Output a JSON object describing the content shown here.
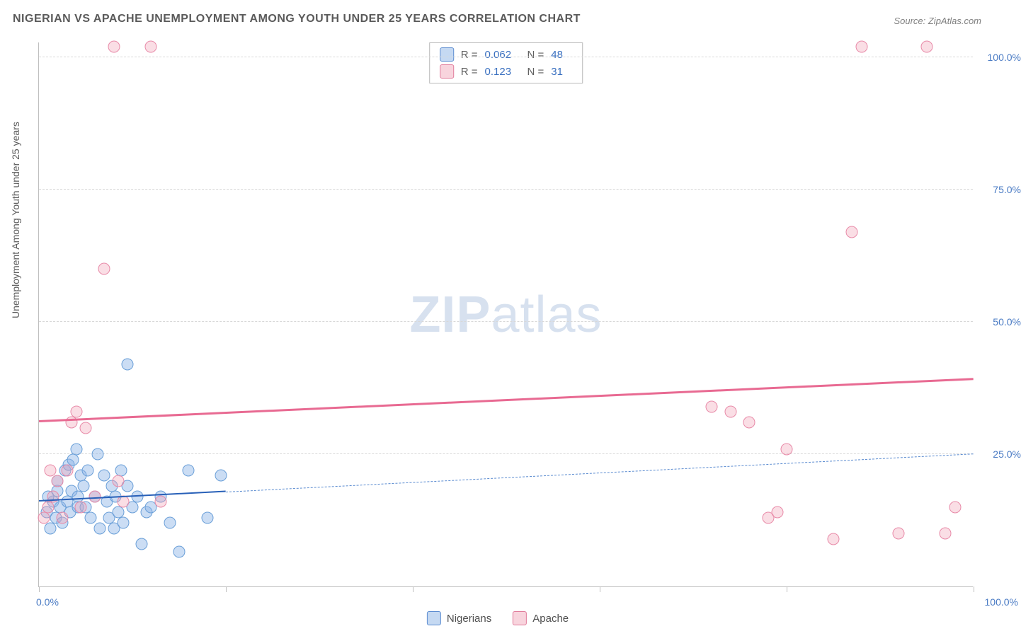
{
  "title": "NIGERIAN VS APACHE UNEMPLOYMENT AMONG YOUTH UNDER 25 YEARS CORRELATION CHART",
  "source": "Source: ZipAtlas.com",
  "ylabel": "Unemployment Among Youth under 25 years",
  "watermark_bold": "ZIP",
  "watermark_light": "atlas",
  "chart": {
    "type": "scatter",
    "xlim": [
      0,
      100
    ],
    "ylim": [
      0,
      103
    ],
    "y_grid": [
      25,
      50,
      75,
      100
    ],
    "y_tick_labels": [
      "25.0%",
      "50.0%",
      "75.0%",
      "100.0%"
    ],
    "x_ticks": [
      0,
      20,
      40,
      60,
      80,
      100
    ],
    "x_tick_labels": {
      "left": "0.0%",
      "right": "100.0%"
    },
    "background": "#ffffff",
    "grid_color": "#d8d8d8",
    "axis_color": "#bfbfbf",
    "ytick_color": "#4a7bc4",
    "series": [
      {
        "name": "Nigerians",
        "color_fill": "rgba(140,180,230,0.45)",
        "color_stroke": "#6a9fd8",
        "r_value": "0.062",
        "n_value": "48",
        "trend": {
          "x1": 0,
          "y1": 16,
          "x2_solid": 20,
          "x2": 100,
          "y2": 25,
          "solid_color": "#2860b8",
          "dash_color": "#5a8bd0"
        },
        "points": [
          [
            0.8,
            14
          ],
          [
            1.2,
            11
          ],
          [
            1.5,
            16
          ],
          [
            1.0,
            17
          ],
          [
            1.8,
            13
          ],
          [
            2.0,
            18
          ],
          [
            2.3,
            15
          ],
          [
            2.5,
            12
          ],
          [
            2.0,
            20
          ],
          [
            2.8,
            22
          ],
          [
            3.0,
            16
          ],
          [
            3.3,
            14
          ],
          [
            3.5,
            18
          ],
          [
            3.2,
            23
          ],
          [
            3.6,
            24
          ],
          [
            4.0,
            26
          ],
          [
            4.2,
            17
          ],
          [
            4.5,
            21
          ],
          [
            4.2,
            15
          ],
          [
            4.8,
            19
          ],
          [
            5.0,
            15
          ],
          [
            5.2,
            22
          ],
          [
            5.5,
            13
          ],
          [
            6.0,
            17
          ],
          [
            6.3,
            25
          ],
          [
            6.5,
            11
          ],
          [
            7.0,
            21
          ],
          [
            7.3,
            16
          ],
          [
            7.5,
            13
          ],
          [
            7.8,
            19
          ],
          [
            8.0,
            11
          ],
          [
            8.2,
            17
          ],
          [
            8.5,
            14
          ],
          [
            8.8,
            22
          ],
          [
            9.0,
            12
          ],
          [
            9.5,
            19
          ],
          [
            9.5,
            42
          ],
          [
            10.0,
            15
          ],
          [
            10.5,
            17
          ],
          [
            11.0,
            8
          ],
          [
            11.5,
            14
          ],
          [
            12.0,
            15
          ],
          [
            13.0,
            17
          ],
          [
            14.0,
            12
          ],
          [
            15.0,
            6.5
          ],
          [
            16.0,
            22
          ],
          [
            18.0,
            13
          ],
          [
            19.5,
            21
          ]
        ]
      },
      {
        "name": "Apache",
        "color_fill": "rgba(240,160,180,0.35)",
        "color_stroke": "#e88aa8",
        "r_value": "0.123",
        "n_value": "31",
        "trend": {
          "x1": 0,
          "y1": 31,
          "x2_solid": 100,
          "x2": 100,
          "y2": 39,
          "solid_color": "#e86a92"
        },
        "points": [
          [
            0.5,
            13
          ],
          [
            1.0,
            15
          ],
          [
            1.5,
            17
          ],
          [
            1.2,
            22
          ],
          [
            2.0,
            20
          ],
          [
            2.5,
            13
          ],
          [
            3.0,
            22
          ],
          [
            3.5,
            31
          ],
          [
            4.0,
            33
          ],
          [
            4.5,
            15
          ],
          [
            5.0,
            30
          ],
          [
            6.0,
            17
          ],
          [
            7.0,
            60
          ],
          [
            8.0,
            102
          ],
          [
            8.5,
            20
          ],
          [
            9.0,
            16
          ],
          [
            12.0,
            102
          ],
          [
            13.0,
            16
          ],
          [
            72.0,
            34
          ],
          [
            74.0,
            33
          ],
          [
            76.0,
            31
          ],
          [
            78.0,
            13
          ],
          [
            79.0,
            14
          ],
          [
            80.0,
            26
          ],
          [
            85.0,
            9
          ],
          [
            87.0,
            67
          ],
          [
            88.0,
            102
          ],
          [
            92.0,
            10
          ],
          [
            95.0,
            102
          ],
          [
            97.0,
            10
          ],
          [
            98.0,
            15
          ]
        ]
      }
    ]
  },
  "stats_labels": {
    "r": "R =",
    "n": "N ="
  },
  "legend": [
    {
      "name": "Nigerians",
      "class": "blue"
    },
    {
      "name": "Apache",
      "class": "pink"
    }
  ]
}
